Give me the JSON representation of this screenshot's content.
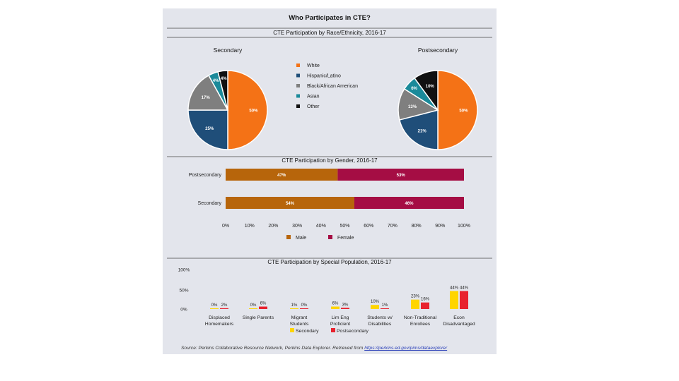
{
  "main_title": "Who Participates in CTE?",
  "source": {
    "prefix": "Source: Perkins Collaborative Resource Network, Perkins Data Explorer. Retrieved from ",
    "link": "https://perkins.ed.gov/pims/dataexplorer"
  },
  "colors": {
    "white": "#f47216",
    "hispanic": "#1f4e79",
    "black": "#7f7f7f",
    "asian": "#1b8a9a",
    "other": "#111111",
    "male": "#b7650b",
    "female": "#a50d44",
    "secondary": "#ffd500",
    "postsecondary": "#e8222e"
  },
  "chart_data": [
    {
      "type": "pie",
      "title": "CTE Participation by Race/Ethnicity, 2016-17",
      "legend": [
        "White",
        "Hispanic/Latino",
        "Black/African American",
        "Asian",
        "Other"
      ],
      "series": [
        {
          "name": "Secondary",
          "labels": [
            "White",
            "Hispanic/Latino",
            "Black/African American",
            "Asian",
            "Other"
          ],
          "values": [
            50,
            25,
            17,
            4,
            4
          ],
          "value_labels": [
            "50%",
            "25%",
            "17%",
            "4%",
            "4%"
          ]
        },
        {
          "name": "Postsecondary",
          "labels": [
            "White",
            "Hispanic/Latino",
            "Black/African American",
            "Asian",
            "Other"
          ],
          "values": [
            50,
            21,
            13,
            6,
            10
          ],
          "value_labels": [
            "50%",
            "21%",
            "13%",
            "6%",
            "10%"
          ]
        }
      ]
    },
    {
      "type": "bar",
      "orientation": "horizontal",
      "stacked": true,
      "title": "CTE Participation by Gender, 2016-17",
      "categories": [
        "Postsecondary",
        "Secondary"
      ],
      "series": [
        {
          "name": "Male",
          "values": [
            47,
            54
          ],
          "value_labels": [
            "47%",
            "54%"
          ]
        },
        {
          "name": "Female",
          "values": [
            53,
            46
          ],
          "value_labels": [
            "53%",
            "46%"
          ]
        }
      ],
      "xticks": [
        "0%",
        "10%",
        "20%",
        "30%",
        "40%",
        "50%",
        "60%",
        "70%",
        "80%",
        "90%",
        "100%"
      ],
      "xlim": [
        0,
        100
      ]
    },
    {
      "type": "bar",
      "title": "CTE Participation by Special Population, 2016-17",
      "categories": [
        "Displaced Homemakers",
        "Single Parents",
        "Migrant Students",
        "Lim Eng Proficient",
        "Students w/ Disabilities",
        "Non-Traditional Enrollees",
        "Econ Disadvantaged"
      ],
      "series": [
        {
          "name": "Secondary",
          "values": [
            0,
            0,
            1,
            6,
            10,
            23,
            44
          ],
          "value_labels": [
            "0%",
            "0%",
            "1%",
            "6%",
            "10%",
            "23%",
            "44%"
          ]
        },
        {
          "name": "Postsecondary",
          "values": [
            2,
            6,
            0,
            3,
            1,
            16,
            44
          ],
          "value_labels": [
            "2%",
            "6%",
            "0%",
            "3%",
            "1%",
            "16%",
            "44%"
          ]
        }
      ],
      "yticks": [
        "100%",
        "50%",
        "0%"
      ],
      "ylim": [
        0,
        100
      ]
    }
  ]
}
